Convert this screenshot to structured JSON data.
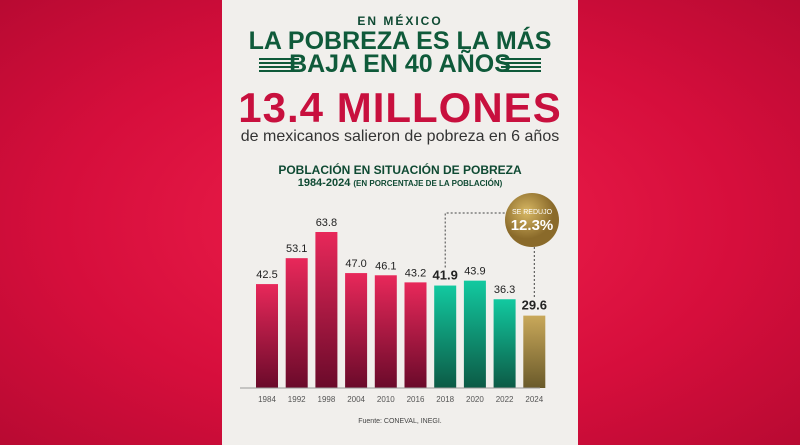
{
  "header": {
    "kicker": "EN MÉXICO",
    "title_line1": "LA POBREZA ES LA MÁS",
    "title_line2": "BAJA EN 40 AÑOS",
    "headline": "13.4 MILLONES",
    "subtitle": "de mexicanos salieron de pobreza en 6 años"
  },
  "chart_data": {
    "type": "bar",
    "title": "POBLACIÓN EN SITUACIÓN DE POBREZA",
    "subtitle_years": "1984-2024",
    "subtitle_note": "(EN PORCENTAJE DE LA POBLACIÓN)",
    "categories": [
      "1984",
      "1992",
      "1998",
      "2004",
      "2010",
      "2016",
      "2018",
      "2020",
      "2022",
      "2024"
    ],
    "values": [
      42.5,
      53.1,
      63.8,
      47.0,
      46.1,
      43.2,
      41.9,
      43.9,
      36.3,
      29.6
    ],
    "labels": [
      "42.5",
      "53.1",
      "63.8",
      "47.0",
      "46.1",
      "43.2",
      "41.9",
      "43.9",
      "36.3",
      "29.6"
    ],
    "colors": [
      "#e8285a",
      "#e8285a",
      "#e8285a",
      "#e8285a",
      "#e8285a",
      "#e8285a",
      "#12c9a0",
      "#12c9a0",
      "#12c9a0",
      "#c9a85a"
    ],
    "ylim": [
      0,
      70
    ],
    "annotation": {
      "line1": "SE REDUJO",
      "line2": "12.3%",
      "from": "2018",
      "to": "2024"
    },
    "source": "Fuente: CONEVAL, INEGI."
  }
}
